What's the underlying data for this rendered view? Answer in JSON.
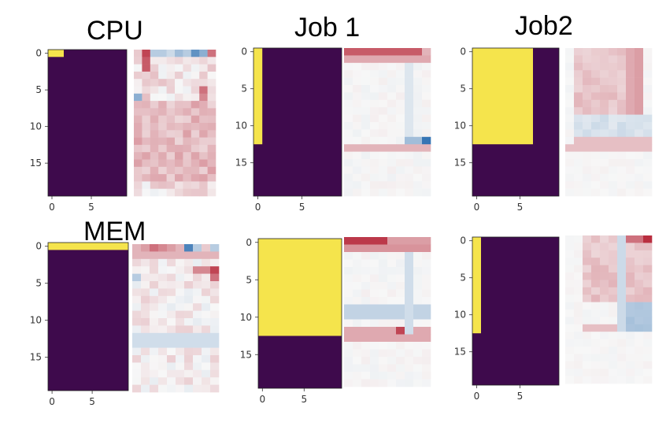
{
  "titles": {
    "cpu": "CPU",
    "job1": "Job 1",
    "job2": "Job2",
    "mem": "MEM"
  },
  "colors": {
    "mask_off": "#3e0a4c",
    "mask_on": "#f5e44c",
    "corr_pos": "#b2182b",
    "corr_neg": "#2166ac",
    "corr_zero": "#f7f7f7"
  },
  "chart_data": [
    {
      "type": "heatmap",
      "panel": "cpu",
      "title": "CPU",
      "mask": {
        "rows": 20,
        "cols": 10,
        "on_rows": [
          0,
          0
        ],
        "on_cols": [
          0,
          1
        ]
      },
      "yticks": [
        0,
        5,
        10,
        15
      ],
      "xticks": [
        0,
        5
      ],
      "corr": {
        "rows": 20,
        "cols": 10,
        "style": "cpu",
        "seed": 11
      }
    },
    {
      "type": "heatmap",
      "panel": "job1-top",
      "title": "Job 1",
      "mask": {
        "rows": 20,
        "cols": 10,
        "on_rows": [
          0,
          12
        ],
        "on_cols": [
          0,
          0
        ]
      },
      "yticks": [
        0,
        5,
        10,
        15
      ],
      "xticks": [
        0,
        5
      ],
      "corr": {
        "rows": 20,
        "cols": 10,
        "style": "job1a",
        "seed": 23
      }
    },
    {
      "type": "heatmap",
      "panel": "job2-top",
      "title": "Job2",
      "mask": {
        "rows": 20,
        "cols": 10,
        "on_rows": [
          0,
          12
        ],
        "on_cols": [
          0,
          6
        ]
      },
      "yticks": [
        0,
        5,
        10,
        15
      ],
      "xticks": [
        0,
        5
      ],
      "corr": {
        "rows": 20,
        "cols": 10,
        "style": "job2a",
        "seed": 37
      }
    },
    {
      "type": "heatmap",
      "panel": "mem",
      "title": "MEM",
      "mask": {
        "rows": 20,
        "cols": 10,
        "on_rows": [
          0,
          0
        ],
        "on_cols": [
          0,
          9
        ]
      },
      "yticks": [
        0,
        5,
        10,
        15
      ],
      "xticks": [
        0,
        5
      ],
      "corr": {
        "rows": 20,
        "cols": 10,
        "style": "mem",
        "seed": 41
      }
    },
    {
      "type": "heatmap",
      "panel": "job1-bottom",
      "title": "",
      "mask": {
        "rows": 20,
        "cols": 10,
        "on_rows": [
          0,
          12
        ],
        "on_cols": [
          0,
          9
        ]
      },
      "yticks": [
        0,
        5,
        10,
        15
      ],
      "xticks": [
        0,
        5
      ],
      "corr": {
        "rows": 20,
        "cols": 10,
        "style": "job1b",
        "seed": 53
      }
    },
    {
      "type": "heatmap",
      "panel": "job2-bottom",
      "title": "",
      "mask": {
        "rows": 20,
        "cols": 10,
        "on_rows": [
          0,
          12
        ],
        "on_cols": [
          0,
          0
        ]
      },
      "yticks": [
        0,
        5,
        10,
        15
      ],
      "xticks": [
        0,
        5
      ],
      "corr": {
        "rows": 20,
        "cols": 10,
        "style": "job2b",
        "seed": 67
      }
    }
  ]
}
